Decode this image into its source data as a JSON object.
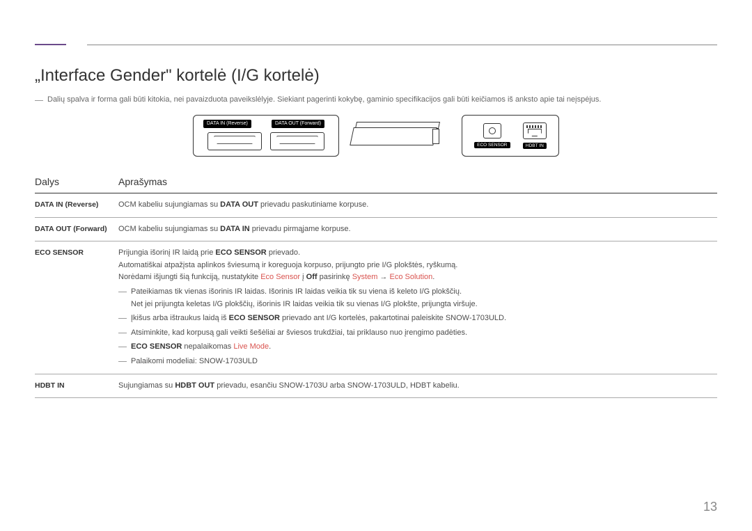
{
  "heading": "„Interface Gender\" kortelė (I/G kortelė)",
  "topNote": "Dalių spalva ir forma gali būti kitokia, nei pavaizduota paveikslėlyje. Siekiant pagerinti kokybę, gaminio specifikacijos gali būti keičiamos iš anksto apie tai neįspėjus.",
  "diagram": {
    "dataIn": "DATA IN (Reverse)",
    "dataOut": "DATA OUT (Forward)",
    "ecoSensor": "ECO SENSOR",
    "hdbtIn": "HDBT IN"
  },
  "table": {
    "headers": {
      "parts": "Dalys",
      "desc": "Aprašymas"
    },
    "rows": {
      "r1": {
        "name": "DATA IN (Reverse)",
        "p1a": "OCM kabeliu sujungiamas su ",
        "p1b": "DATA OUT",
        "p1c": " prievadu paskutiniame korpuse."
      },
      "r2": {
        "name": "DATA OUT (Forward)",
        "p1a": "OCM kabeliu sujungiamas su ",
        "p1b": "DATA IN",
        "p1c": " prievadu pirmąjame korpuse."
      },
      "r3": {
        "name": "ECO SENSOR",
        "p1a": "Prijungia išorinį IR laidą prie ",
        "p1b": "ECO SENSOR",
        "p1c": " prievado.",
        "p2": "Automatiškai atpažįsta aplinkos šviesumą ir koreguoja korpuso, prijungto prie I/G plokštės, ryškumą.",
        "p3a": "Norėdami išjungti šią funkciją, nustatykite ",
        "p3b": "Eco Sensor",
        "p3c": " į ",
        "p3d": "Off",
        "p3e": " pasirinkę ",
        "p3f": "System",
        "p3g": " → ",
        "p3h": "Eco Solution",
        "p3i": ".",
        "b1": "Pateikiamas tik vienas išorinis IR laidas. Išorinis IR laidas veikia tik su viena iš keleto I/G plokščių.",
        "b1sub": "Net jei prijungta keletas I/G plokščių, išorinis IR laidas veikia tik su vienas I/G plokšte, prijungta viršuje.",
        "b2a": "Įkišus arba ištraukus laidą iš ",
        "b2b": "ECO SENSOR",
        "b2c": " prievado ant I/G kortelės, pakartotinai paleiskite SNOW-1703ULD.",
        "b3": "Atsiminkite, kad korpusą gali veikti šešėliai ar šviesos trukdžiai, tai priklauso nuo įrengimo padėties.",
        "b4a": "ECO SENSOR",
        "b4b": " nepalaikomas ",
        "b4c": "Live Mode",
        "b4d": ".",
        "b5": "Palaikomi modeliai: SNOW-1703ULD"
      },
      "r4": {
        "name": "HDBT IN",
        "p1a": "Sujungiamas su ",
        "p1b": "HDBT OUT",
        "p1c": " prievadu, esančiu SNOW-1703U arba SNOW-1703ULD, HDBT kabeliu."
      }
    }
  },
  "pageNumber": "13"
}
